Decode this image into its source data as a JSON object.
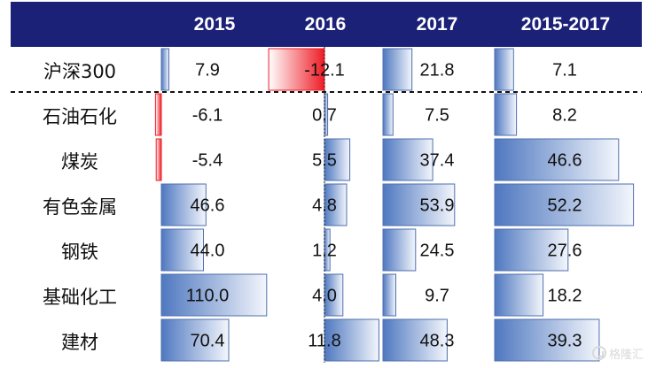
{
  "chart_data": {
    "type": "table",
    "columns": [
      "2015",
      "2016",
      "2017",
      "2015-2017"
    ],
    "rows": [
      {
        "label": "沪深300",
        "values": [
          7.9,
          -12.1,
          21.8,
          7.1
        ],
        "display": [
          "7.9",
          "-12.1",
          "21.8",
          "7.1"
        ]
      },
      {
        "label": "石油石化",
        "values": [
          -6.1,
          0.7,
          7.5,
          8.2
        ],
        "display": [
          "-6.1",
          "0.7",
          "7.5",
          "8.2"
        ]
      },
      {
        "label": "煤炭",
        "values": [
          -5.4,
          5.5,
          37.4,
          46.6
        ],
        "display": [
          "-5.4",
          "5.5",
          "37.4",
          "46.6"
        ]
      },
      {
        "label": "有色金属",
        "values": [
          46.6,
          4.8,
          53.9,
          52.2
        ],
        "display": [
          "46.6",
          "4.8",
          "53.9",
          "52.2"
        ]
      },
      {
        "label": "钢铁",
        "values": [
          44.0,
          1.2,
          24.5,
          27.6
        ],
        "display": [
          "44.0",
          "1.2",
          "24.5",
          "27.6"
        ]
      },
      {
        "label": "基础化工",
        "values": [
          110.0,
          4.0,
          9.7,
          18.2
        ],
        "display": [
          "110.0",
          "4.0",
          "9.7",
          "18.2"
        ]
      },
      {
        "label": "建材",
        "values": [
          70.4,
          11.8,
          48.3,
          39.3
        ],
        "display": [
          "70.4",
          "11.8",
          "48.3",
          "39.3"
        ]
      }
    ],
    "colors": {
      "header_bg": "#1c2178",
      "header_text": "#ffffff",
      "positive_bar_dark": "#4f78c0",
      "positive_bar_light": "#f3f6fc",
      "negative_bar_dark": "#ee1c25",
      "negative_bar_light": "#ffffff",
      "bar_border": "#4f6fad"
    }
  },
  "watermark": {
    "icon": "watermark-logo-icon",
    "text": "格隆汇"
  }
}
